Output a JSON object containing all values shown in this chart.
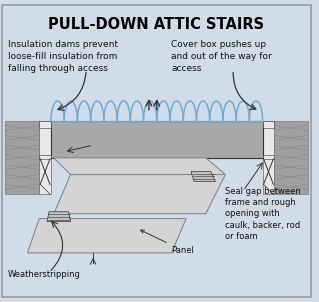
{
  "title": "PULL-DOWN ATTIC STAIRS",
  "bg_color": "#d0dde8",
  "title_color": "#000000",
  "title_fontsize": 10.5,
  "text_fontsize": 6.5,
  "annotation_fontsize": 6.0,
  "label_top_left": "Insulation dams prevent\nloose-fill insulation from\nfalling through access",
  "label_top_right": "Cover box pushes up\nand out of the way for\naccess",
  "label_weatherstrip_top": "Weatherstripping",
  "label_panel": "Panel",
  "label_weatherstrip_bottom": "Weatherstripping",
  "label_seal": "Seal gap between\nframe and rough\nopening with\ncaulk, backer, rod\nor foam",
  "box_fill": "#a8a8a8",
  "panel_fill": "#d4d4d4",
  "panel_edge": "#888888",
  "insulation_color": "#6aaadd",
  "wall_gray": "#a0a0a0",
  "frame_white": "#e8e8e8",
  "line_color": "#333333",
  "hinge_color": "#bbbbbb",
  "border_color": "#999999"
}
